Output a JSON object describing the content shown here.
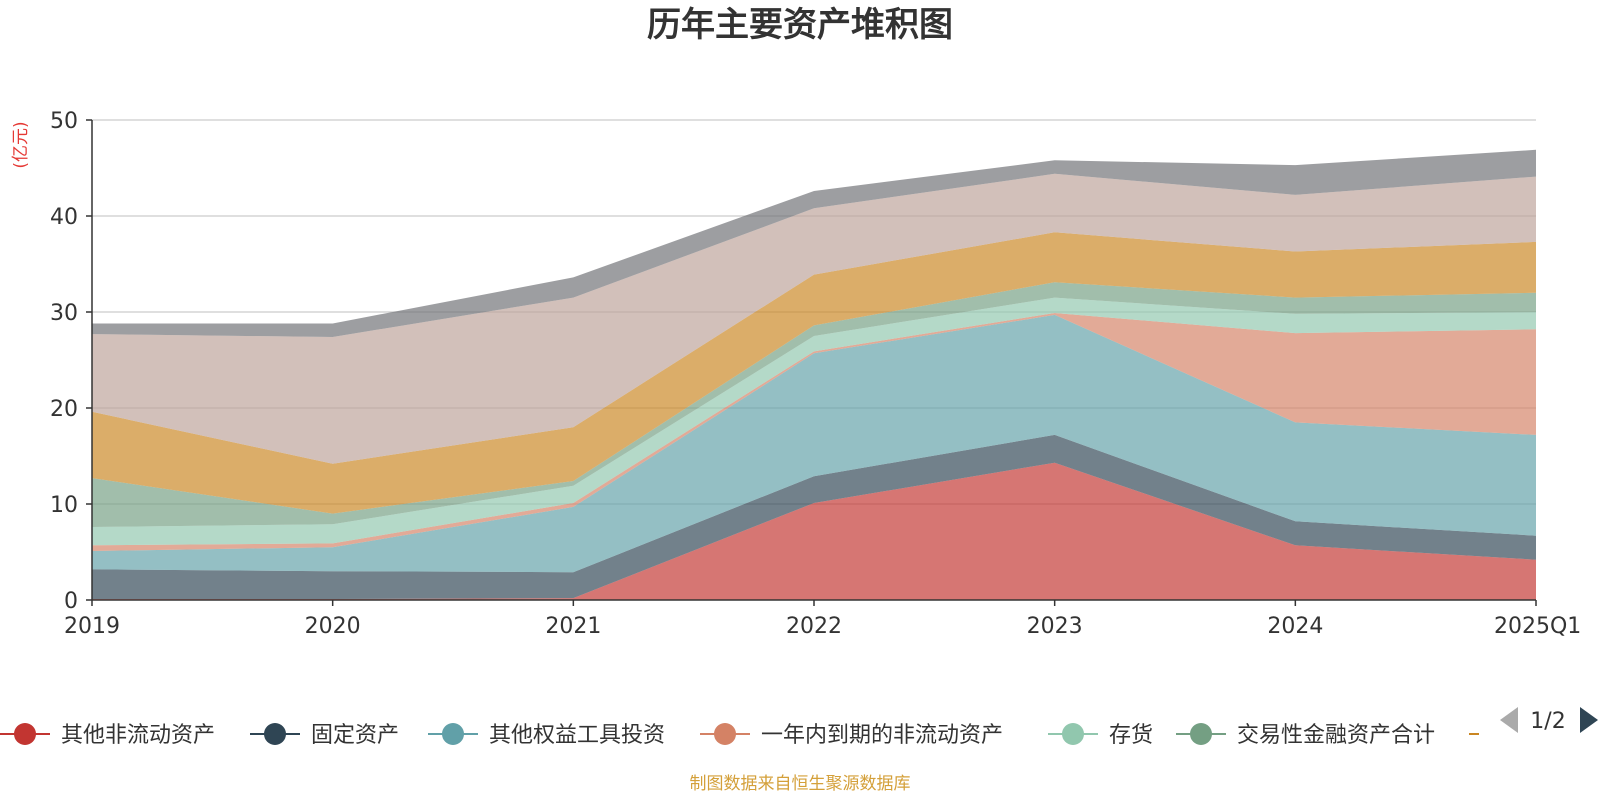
{
  "chart_data": {
    "type": "area",
    "stacked": true,
    "title": "历年主要资产堆积图",
    "y_unit": "(亿元)",
    "categories": [
      "2019",
      "2020",
      "2021",
      "2022",
      "2023",
      "2024",
      "2025Q1"
    ],
    "ylim": [
      0,
      50
    ],
    "yticks": [
      0,
      10,
      20,
      30,
      40,
      50
    ],
    "grid": true,
    "series": [
      {
        "name": "其他非流动资产",
        "color": "#c23531",
        "values": [
          0.1,
          0.1,
          0.2,
          10.1,
          14.3,
          5.7,
          4.2
        ]
      },
      {
        "name": "固定资产",
        "color": "#2f4554",
        "values": [
          3.1,
          2.9,
          2.7,
          2.8,
          2.9,
          2.5,
          2.5
        ]
      },
      {
        "name": "其他权益工具投资",
        "color": "#61a0a8",
        "values": [
          1.9,
          2.5,
          6.8,
          12.8,
          12.5,
          10.3,
          10.5
        ]
      },
      {
        "name": "一年内到期的非流动资产",
        "color": "#d48265",
        "values": [
          0.6,
          0.4,
          0.4,
          0.2,
          0.2,
          9.3,
          11.0
        ]
      },
      {
        "name": "存货",
        "color": "#91c7ae",
        "values": [
          1.9,
          2.0,
          1.8,
          1.6,
          1.6,
          2.0,
          1.8
        ]
      },
      {
        "name": "交易性金融资产合计",
        "color": "#749f83",
        "values": [
          5.1,
          1.1,
          0.5,
          1.1,
          1.6,
          1.7,
          2.0
        ]
      },
      {
        "name": "",
        "color": "#ca8622",
        "values": [
          6.9,
          5.2,
          5.6,
          5.3,
          5.2,
          4.8,
          5.3
        ]
      },
      {
        "name": "",
        "color": "#bda29a",
        "values": [
          8.1,
          13.2,
          13.5,
          6.9,
          6.1,
          5.9,
          6.8
        ]
      },
      {
        "name": "",
        "color": "#6e7074",
        "values": [
          1.1,
          1.4,
          2.1,
          1.8,
          1.4,
          3.1,
          2.8
        ]
      }
    ],
    "legend": {
      "page_label": "1/2",
      "visible_entries": [
        "其他非流动资产",
        "固定资产",
        "其他权益工具投资",
        "一年内到期的非流动资产",
        "存货",
        "交易性金融资产合计",
        ""
      ]
    }
  },
  "footer": {
    "source_text": "制图数据来自恒生聚源数据库"
  }
}
